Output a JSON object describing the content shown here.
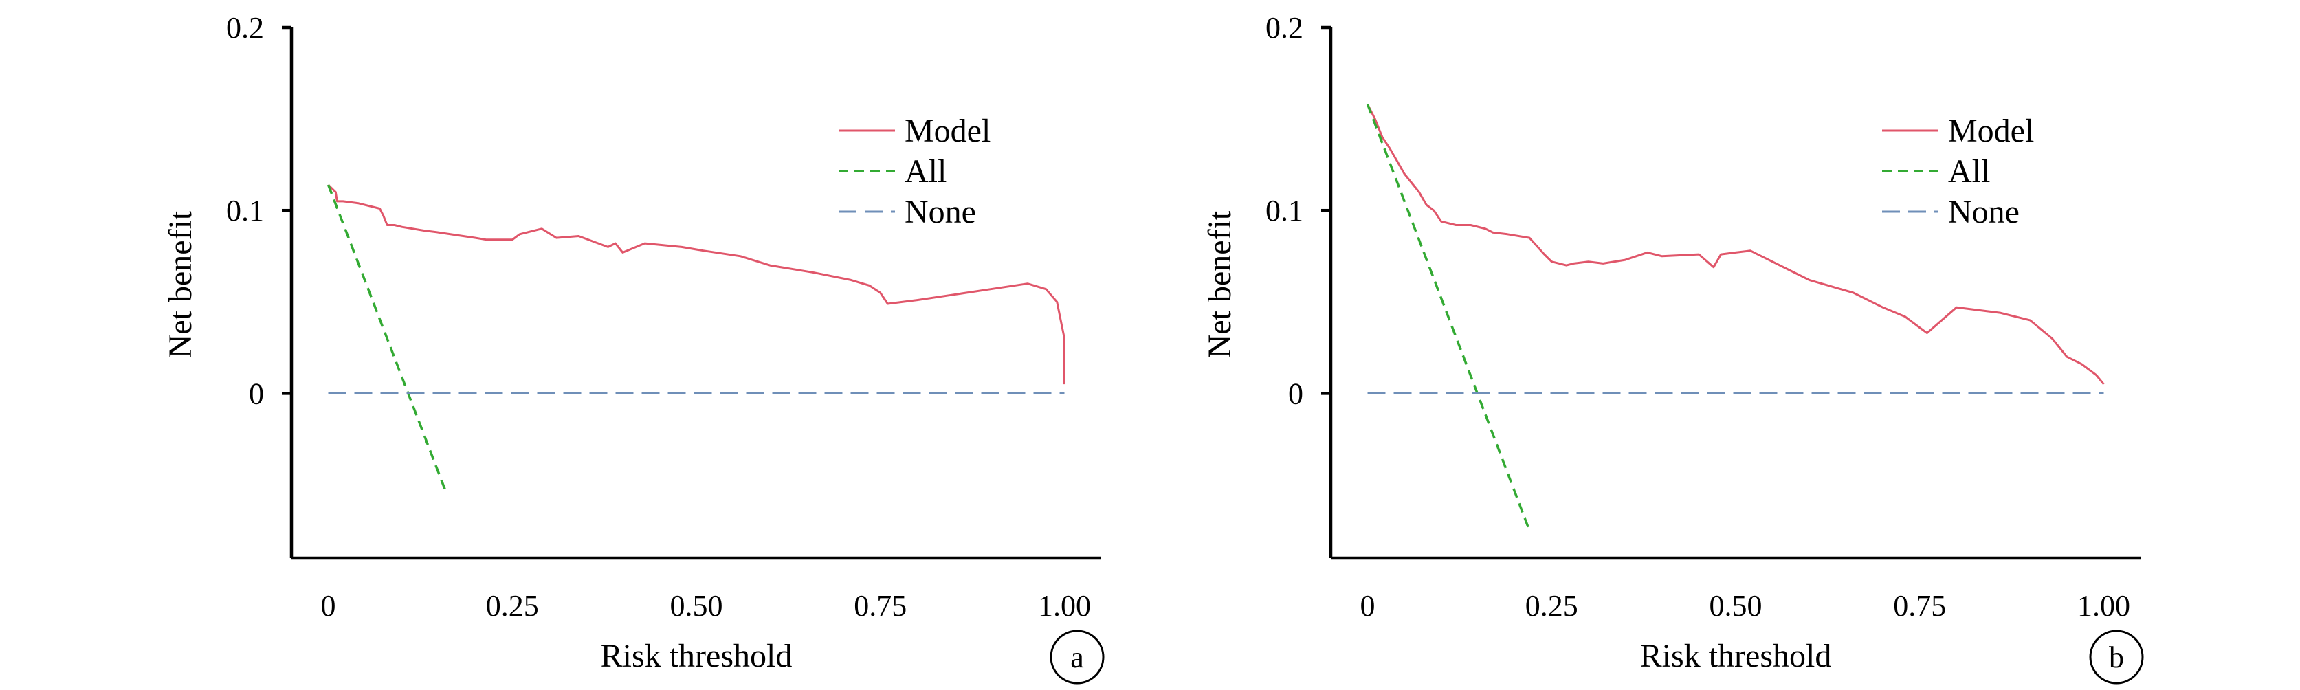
{
  "colors": {
    "model": "#e0566a",
    "all": "#33aa33",
    "none": "#6f8fb8"
  },
  "chart_data": [
    {
      "type": "line",
      "panel_label": "a",
      "xlabel": "Risk threshold",
      "ylabel": "Net benefit",
      "xlim": [
        -0.05,
        1.05
      ],
      "ylim": [
        -0.09,
        0.2
      ],
      "xticks": [
        0,
        0.25,
        0.5,
        0.75,
        1.0
      ],
      "xtick_labels": [
        "0",
        "0.25",
        "0.50",
        "0.75",
        "1.00"
      ],
      "yticks": [
        0,
        0.1,
        0.2
      ],
      "ytick_labels": [
        "0",
        "0.1",
        "0.2"
      ],
      "legend_position": "top-right",
      "series": [
        {
          "name": "Model",
          "style": "solid",
          "color_key": "model",
          "x": [
            0,
            0.01,
            0.012,
            0.02,
            0.04,
            0.07,
            0.075,
            0.08,
            0.09,
            0.1,
            0.13,
            0.15,
            0.2,
            0.215,
            0.25,
            0.26,
            0.29,
            0.31,
            0.34,
            0.38,
            0.39,
            0.4,
            0.43,
            0.48,
            0.51,
            0.56,
            0.6,
            0.66,
            0.71,
            0.735,
            0.75,
            0.76,
            0.8,
            0.85,
            0.9,
            0.95,
            0.975,
            0.99,
            1.0,
            1.0
          ],
          "y": [
            0.114,
            0.11,
            0.105,
            0.105,
            0.104,
            0.101,
            0.097,
            0.092,
            0.092,
            0.091,
            0.089,
            0.088,
            0.085,
            0.084,
            0.084,
            0.087,
            0.09,
            0.085,
            0.086,
            0.08,
            0.082,
            0.077,
            0.082,
            0.08,
            0.078,
            0.075,
            0.07,
            0.066,
            0.062,
            0.059,
            0.055,
            0.049,
            0.051,
            0.054,
            0.057,
            0.06,
            0.057,
            0.05,
            0.03,
            0.005
          ]
        },
        {
          "name": "All",
          "style": "dashed",
          "color_key": "all",
          "x": [
            0,
            0.16
          ],
          "y": [
            0.114,
            -0.054
          ]
        },
        {
          "name": "None",
          "style": "dashed",
          "color_key": "none",
          "x": [
            0,
            1.0
          ],
          "y": [
            0,
            0
          ]
        }
      ]
    },
    {
      "type": "line",
      "panel_label": "b",
      "xlabel": "Risk threshold",
      "ylabel": "Net benefit",
      "xlim": [
        -0.05,
        1.05
      ],
      "ylim": [
        -0.09,
        0.2
      ],
      "xticks": [
        0,
        0.25,
        0.5,
        0.75,
        1.0
      ],
      "xtick_labels": [
        "0",
        "0.25",
        "0.50",
        "0.75",
        "1.00"
      ],
      "yticks": [
        0,
        0.1,
        0.2
      ],
      "ytick_labels": [
        "0",
        "0.1",
        "0.2"
      ],
      "legend_position": "top-right",
      "series": [
        {
          "name": "Model",
          "style": "solid",
          "color_key": "model",
          "x": [
            0,
            0.01,
            0.02,
            0.03,
            0.04,
            0.05,
            0.07,
            0.08,
            0.09,
            0.1,
            0.12,
            0.14,
            0.16,
            0.17,
            0.19,
            0.22,
            0.24,
            0.25,
            0.27,
            0.28,
            0.3,
            0.32,
            0.35,
            0.38,
            0.4,
            0.45,
            0.47,
            0.48,
            0.5,
            0.52,
            0.56,
            0.6,
            0.66,
            0.7,
            0.73,
            0.76,
            0.8,
            0.86,
            0.89,
            0.9,
            0.93,
            0.95,
            0.97,
            0.99,
            1.0
          ],
          "y": [
            0.158,
            0.15,
            0.14,
            0.134,
            0.127,
            0.12,
            0.11,
            0.103,
            0.1,
            0.094,
            0.092,
            0.092,
            0.09,
            0.088,
            0.087,
            0.085,
            0.076,
            0.072,
            0.07,
            0.071,
            0.072,
            0.071,
            0.073,
            0.077,
            0.075,
            0.076,
            0.069,
            0.076,
            0.077,
            0.078,
            0.07,
            0.062,
            0.055,
            0.047,
            0.042,
            0.033,
            0.047,
            0.044,
            0.041,
            0.04,
            0.03,
            0.02,
            0.016,
            0.01,
            0.005
          ]
        },
        {
          "name": "All",
          "style": "dashed",
          "color_key": "all",
          "x": [
            0,
            0.22
          ],
          "y": [
            0.158,
            -0.075
          ]
        },
        {
          "name": "None",
          "style": "dashed",
          "color_key": "none",
          "x": [
            0,
            1.0
          ],
          "y": [
            0,
            0
          ]
        }
      ]
    }
  ]
}
